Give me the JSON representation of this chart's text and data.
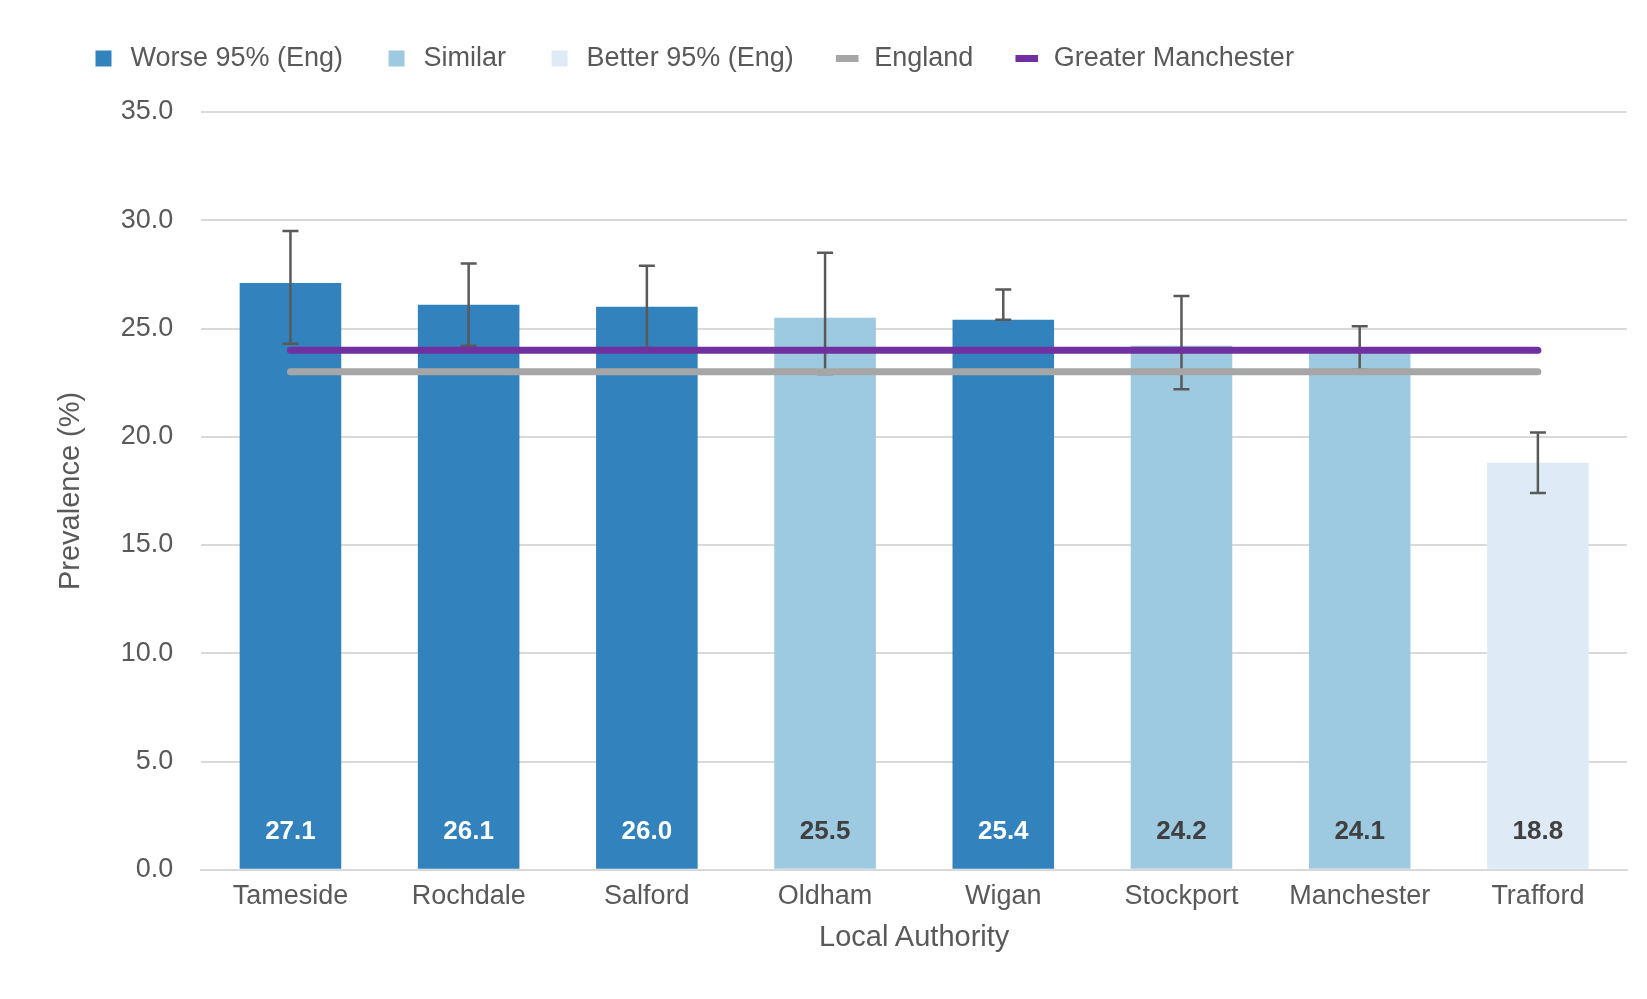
{
  "chart_data": {
    "type": "bar",
    "stacked": true,
    "xlabel": "Local Authority",
    "ylabel": "Prevalence (%)",
    "categories": [
      "Tameside",
      "Rochdale",
      "Salford",
      "Oldham",
      "Wigan",
      "Stockport",
      "Manchester",
      "Trafford"
    ],
    "series": [
      {
        "name": "Worse 95% (Eng)",
        "color": "#3182bd",
        "values": [
          27.1,
          26.1,
          26.0,
          null,
          25.4,
          null,
          null,
          null
        ],
        "value_labels": [
          "27.1",
          "26.1",
          "26.0",
          null,
          "25.4",
          null,
          null,
          null
        ],
        "errors": [
          [
            24.3,
            29.5
          ],
          [
            24.2,
            28.0
          ],
          [
            24.1,
            27.9
          ],
          null,
          [
            25.4,
            26.8
          ],
          null,
          null,
          null
        ]
      },
      {
        "name": "Similar",
        "color": "#9ecae1",
        "values": [
          null,
          null,
          null,
          25.5,
          null,
          24.2,
          24.1,
          null
        ],
        "value_labels": [
          null,
          null,
          null,
          "25.5",
          null,
          "24.2",
          "24.1",
          null
        ],
        "errors": [
          null,
          null,
          null,
          [
            22.9,
            28.5
          ],
          null,
          [
            22.2,
            26.5
          ],
          [
            23.1,
            25.1
          ],
          null
        ]
      },
      {
        "name": "Better 95% (Eng)",
        "color": "#deebf7",
        "values": [
          null,
          null,
          null,
          null,
          null,
          null,
          null,
          18.8
        ],
        "value_labels": [
          null,
          null,
          null,
          null,
          null,
          null,
          null,
          "18.8"
        ],
        "errors": [
          null,
          null,
          null,
          null,
          null,
          null,
          null,
          [
            17.4,
            20.2
          ]
        ]
      },
      {
        "name": "England",
        "type": "line",
        "color": "#a6a6a6",
        "values": [
          23.0,
          23.0,
          23.0,
          23.0,
          23.0,
          23.0,
          23.0,
          23.0
        ]
      },
      {
        "name": "Greater Manchester",
        "type": "line",
        "color": "#7030a0",
        "values": [
          24.0,
          24.0,
          24.0,
          24.0,
          24.0,
          24.0,
          24.0,
          24.0
        ]
      }
    ],
    "ylim": [
      0,
      35
    ],
    "yticks": [
      {
        "value": 0,
        "label": "0.0"
      },
      {
        "value": 5,
        "label": "5.0"
      },
      {
        "value": 10,
        "label": "10.0"
      },
      {
        "value": 15,
        "label": "15.0"
      },
      {
        "value": 20,
        "label": "20.0"
      },
      {
        "value": 25,
        "label": "25.0"
      },
      {
        "value": 30,
        "label": "30.0"
      },
      {
        "value": 35,
        "label": "35.0"
      }
    ],
    "grid": "y",
    "legend": "top",
    "marker": "none"
  }
}
